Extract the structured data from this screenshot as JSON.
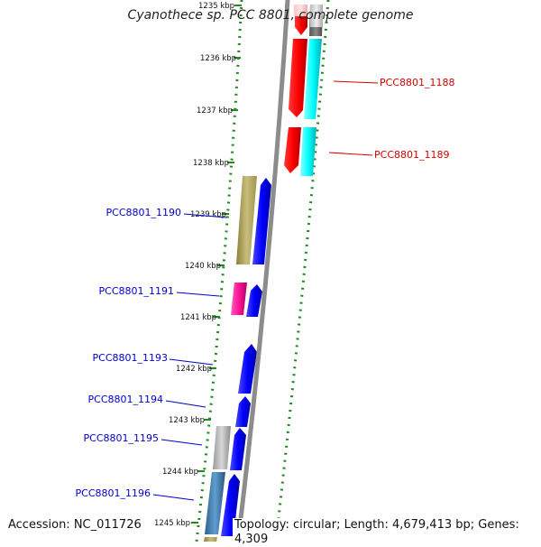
{
  "title": "Cyanothece sp. PCC 8801, complete genome",
  "accession": "Accession: NC_011726",
  "summary": "Topology: circular; Length: 4,679,413 bp; Genes: 4,309",
  "colors": {
    "backbone": "#8c8c8c",
    "dotted_ring": "#1f8a1f",
    "forward_label": "#d60000",
    "reverse_label": "#0000cc"
  },
  "ticks": [
    {
      "label": "1235 kbp",
      "kbp": 1235
    },
    {
      "label": "1236 kbp",
      "kbp": 1236
    },
    {
      "label": "1237 kbp",
      "kbp": 1237
    },
    {
      "label": "1238 kbp",
      "kbp": 1238
    },
    {
      "label": "1239 kbp",
      "kbp": 1239
    },
    {
      "label": "1240 kbp",
      "kbp": 1240
    },
    {
      "label": "1241 kbp",
      "kbp": 1241
    },
    {
      "label": "1242 kbp",
      "kbp": 1242
    },
    {
      "label": "1243 kbp",
      "kbp": 1243
    },
    {
      "label": "1244 kbp",
      "kbp": 1244
    },
    {
      "label": "1245 kbp",
      "kbp": 1245
    }
  ],
  "labels": [
    {
      "text": "PCC8801_1188",
      "color": "#d60000"
    },
    {
      "text": "PCC8801_1189",
      "color": "#d60000"
    },
    {
      "text": "PCC8801_1190",
      "color": "#0000cc"
    },
    {
      "text": "PCC8801_1191",
      "color": "#0000cc"
    },
    {
      "text": "PCC8801_1193",
      "color": "#0000cc"
    },
    {
      "text": "PCC8801_1194",
      "color": "#0000cc"
    },
    {
      "text": "PCC8801_1195",
      "color": "#0000cc"
    },
    {
      "text": "PCC8801_1196",
      "color": "#0000cc"
    }
  ]
}
